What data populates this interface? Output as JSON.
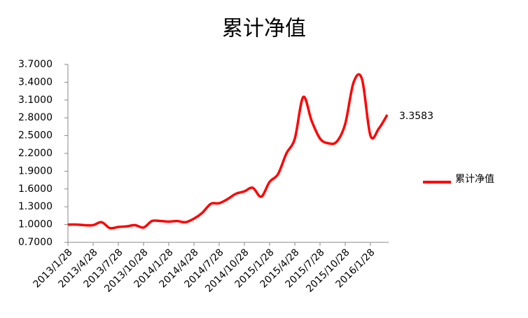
{
  "chart_data": {
    "type": "line",
    "title": "累计净值",
    "categories": [
      "2013/1/28",
      null,
      null,
      "2013/4/28",
      null,
      null,
      "2013/7/28",
      null,
      null,
      "2013/10/28",
      null,
      null,
      "2014/1/28",
      null,
      null,
      "2014/4/28",
      null,
      null,
      "2014/7/28",
      null,
      null,
      "2014/10/28",
      null,
      null,
      "2015/1/28",
      null,
      null,
      "2015/4/28",
      null,
      null,
      "2015/7/28",
      null,
      null,
      "2015/10/28",
      null,
      null,
      "2016/1/28",
      null,
      null
    ],
    "series": [
      {
        "name": "累计净值",
        "color": "#ff0000",
        "values": [
          1.0,
          1.0,
          0.99,
          0.99,
          1.04,
          0.94,
          0.96,
          0.97,
          0.99,
          0.95,
          1.06,
          1.06,
          1.05,
          1.06,
          1.04,
          1.1,
          1.2,
          1.35,
          1.36,
          1.43,
          1.52,
          1.56,
          1.62,
          1.47,
          1.72,
          1.85,
          2.2,
          2.45,
          3.15,
          2.75,
          2.45,
          2.37,
          2.4,
          2.7,
          3.4,
          3.45,
          2.5,
          2.62,
          2.85
        ]
      }
    ],
    "annotation": "3.3583",
    "ylim": [
      0.7,
      3.7
    ],
    "yticks": [
      {
        "value": 0.7,
        "label": "0.7000"
      },
      {
        "value": 1.0,
        "label": "1.0000"
      },
      {
        "value": 1.3,
        "label": "1.3000"
      },
      {
        "value": 1.6,
        "label": "1.6000"
      },
      {
        "value": 1.9,
        "label": "1.9000"
      },
      {
        "value": 2.2,
        "label": "2.2000"
      },
      {
        "value": 2.5,
        "label": "2.5000"
      },
      {
        "value": 2.8,
        "label": "2.8000"
      },
      {
        "value": 3.1,
        "label": "3.1000"
      },
      {
        "value": 3.4,
        "label": "3.4000"
      },
      {
        "value": 3.7,
        "label": "3.7000"
      }
    ],
    "legend": "right"
  }
}
